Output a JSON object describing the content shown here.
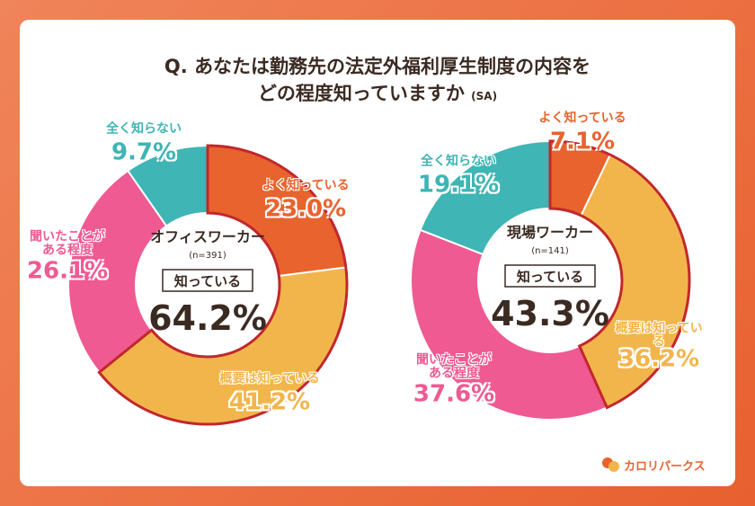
{
  "title": [
    "Q. あなたは勤務先の法定外福利厚生制度の内容を",
    "どの程度知っていますか"
  ],
  "title_note": "(SA)",
  "logo": "カロリパークス",
  "chart_data": [
    {
      "type": "donut",
      "title": "オフィスワーカー",
      "subtitle": "(n=391)",
      "categories": [
        "よく知っている",
        "概要は知っている",
        "聞いたことが\nある程度",
        "全く知らない"
      ],
      "values": [
        23.0,
        41.2,
        26.1,
        9.7
      ],
      "value_labels": [
        "23.0%",
        "41.2%",
        "26.1%",
        "9.7%"
      ],
      "colors": [
        "#e8632d",
        "#f2b54b",
        "#ef5a93",
        "#3fb5b5"
      ],
      "center_label": "知っている",
      "center_value": 64.2,
      "center_value_label": "64.2%"
    },
    {
      "type": "donut",
      "title": "現場ワーカー",
      "subtitle": "(n=141)",
      "categories": [
        "よく知っている",
        "概要は知っている",
        "聞いたことが\nある程度",
        "全く知らない"
      ],
      "values": [
        7.1,
        36.2,
        37.6,
        19.1
      ],
      "value_labels": [
        "7.1%",
        "36.2%",
        "37.6%",
        "19.1%"
      ],
      "colors": [
        "#e8632d",
        "#f2b54b",
        "#ef5a93",
        "#3fb5b5"
      ],
      "center_label": "知っている",
      "center_value": 43.3,
      "center_value_label": "43.3%"
    }
  ]
}
